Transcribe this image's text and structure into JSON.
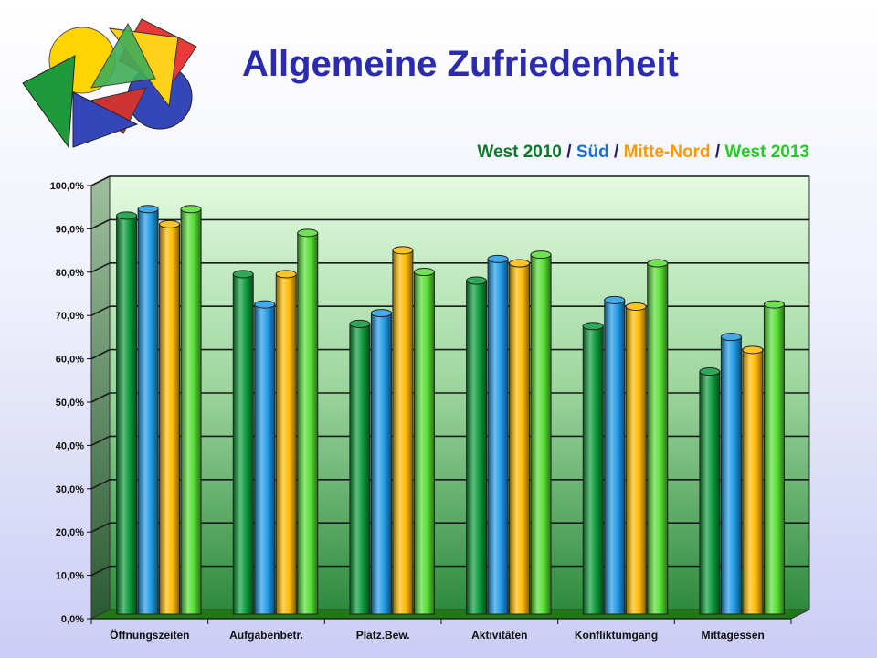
{
  "slide": {
    "title": "Allgemeine Zufriedenheit",
    "subtitle_parts": [
      {
        "text": "West 2010",
        "color": "#0a7a2a"
      },
      {
        "text": " / ",
        "color": "#1f1f6e"
      },
      {
        "text": "Süd",
        "color": "#1a6fd0"
      },
      {
        "text": " / ",
        "color": "#1f1f6e"
      },
      {
        "text": "Mitte-Nord",
        "color": "#ff9900"
      },
      {
        "text": " / ",
        "color": "#1f1f6e"
      },
      {
        "text": "West 2013",
        "color": "#22cc22"
      }
    ]
  },
  "chart_data": {
    "type": "bar",
    "categories": [
      "Öffnungszeiten",
      "Aufgabenbetr.",
      "Platz.Bew.",
      "Aktivitäten",
      "Konfliktumgang",
      "Mittagessen"
    ],
    "series": [
      {
        "name": "West 2010",
        "color": "#0a9a3a",
        "values": [
          92,
          78.5,
          67,
          77,
          66.5,
          56
        ]
      },
      {
        "name": "Süd",
        "color": "#1e9be8",
        "values": [
          93.5,
          71.5,
          69.5,
          82,
          72.5,
          64
        ]
      },
      {
        "name": "Mitte-Nord",
        "color": "#ffbb00",
        "values": [
          90,
          78.5,
          84,
          81,
          71,
          61
        ]
      },
      {
        "name": "West 2013",
        "color": "#55dd33",
        "values": [
          93.5,
          88,
          79,
          83,
          81,
          71.5
        ]
      }
    ],
    "ylim": [
      0,
      100
    ],
    "yticks": [
      "0,0%",
      "10,0%",
      "20,0%",
      "30,0%",
      "40,0%",
      "50,0%",
      "60,0%",
      "70,0%",
      "80,0%",
      "90,0%",
      "100,0%"
    ],
    "xlabel": "",
    "ylabel": "",
    "grid": true,
    "legend": "none"
  }
}
